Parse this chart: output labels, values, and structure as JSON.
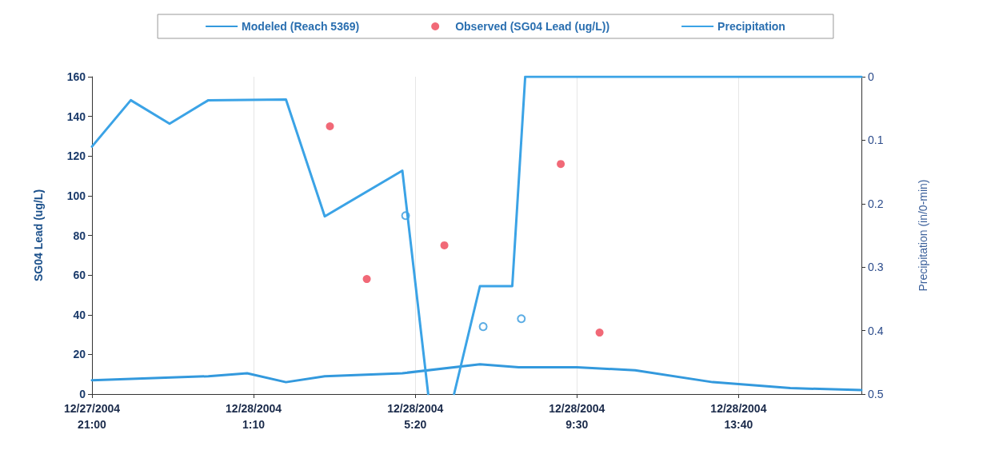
{
  "chart_data": {
    "type": "line",
    "ylabel": "SG04 Lead (ug/L)",
    "y2label": "Precipitation (in/0-min)",
    "xlim": [
      "2004-12-27T21:00",
      "2004-12-28T16:50"
    ],
    "xticks": [
      {
        "value": "2004-12-27T21:00",
        "label": "12/27/2004\n21:00"
      },
      {
        "value": "2004-12-28T01:10",
        "label": "12/28/2004\n1:10"
      },
      {
        "value": "2004-12-28T05:20",
        "label": "12/28/2004\n5:20"
      },
      {
        "value": "2004-12-28T09:30",
        "label": "12/28/2004\n9:30"
      },
      {
        "value": "2004-12-28T13:40",
        "label": "12/28/2004\n13:40"
      }
    ],
    "ylim": [
      0,
      160
    ],
    "yticks": [
      0,
      20,
      40,
      60,
      80,
      100,
      120,
      140,
      160
    ],
    "y2lim": [
      0.5,
      0
    ],
    "y2ticks": [
      0,
      0.1,
      0.2,
      0.3,
      0.4,
      0.5
    ],
    "grid": "x",
    "legend": "top",
    "line_style": "solid",
    "series": [
      {
        "name": "Modeled (Reach 5369)",
        "color": "#3399dd",
        "marker": "none",
        "x": [
          "2004-12-27T21:00",
          "2004-12-28T00:00",
          "2004-12-28T01:00",
          "2004-12-28T02:00",
          "2004-12-28T03:00",
          "2004-12-28T05:00",
          "2004-12-28T07:00",
          "2004-12-28T08:00",
          "2004-12-28T09:30",
          "2004-12-28T11:00",
          "2004-12-28T13:00",
          "2004-12-28T15:00",
          "2004-12-28T16:50"
        ],
        "values": [
          7,
          9,
          10.5,
          6,
          9,
          10.5,
          15,
          13.5,
          13.5,
          12,
          6,
          3,
          2
        ]
      },
      {
        "name": "Observed (SG04 Lead (ug/L))",
        "type": "scatter",
        "color": "#ee4455",
        "marker": "circle",
        "x": [
          "2004-12-28T03:08",
          "2004-12-28T04:05",
          "2004-12-28T06:05",
          "2004-12-28T09:05",
          "2004-12-28T10:05"
        ],
        "values": [
          135,
          58,
          75,
          116,
          31
        ]
      },
      {
        "type": "scatter",
        "color": "#3399dd",
        "marker": "circle",
        "x": [
          "2004-12-28T05:05",
          "2004-12-28T07:05",
          "2004-12-28T08:04"
        ],
        "values": [
          90,
          34,
          38
        ]
      },
      {
        "name": "Precipitation",
        "axis": "y2",
        "color": "#3ba3e6",
        "marker": "none",
        "x": [
          "2004-12-27T21:00",
          "2004-12-27T22:00",
          "2004-12-27T23:00",
          "2004-12-28T00:00",
          "2004-12-28T02:00",
          "2004-12-28T03:00",
          "2004-12-28T05:00",
          "2004-12-28T05:40",
          "2004-12-28T06:00",
          "2004-12-28T06:20",
          "2004-12-28T07:00",
          "2004-12-28T07:50",
          "2004-12-28T08:10",
          "2004-12-28T16:50"
        ],
        "values": [
          0.11,
          0.037,
          0.074,
          0.037,
          0.036,
          0.22,
          0.148,
          0.5,
          null,
          0.5,
          0.33,
          0.33,
          0,
          0
        ]
      }
    ]
  }
}
